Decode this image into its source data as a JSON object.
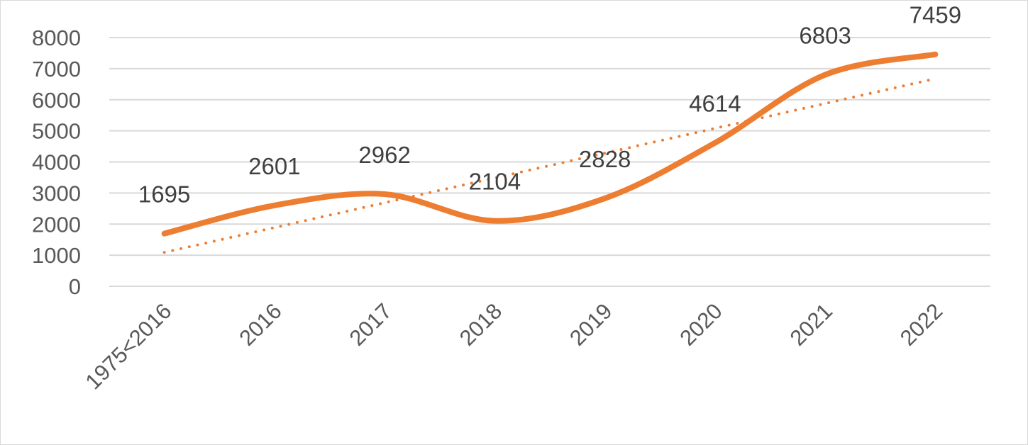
{
  "chart_data": {
    "type": "line",
    "title": "",
    "xlabel": "",
    "ylabel": "",
    "categories": [
      "1975<2016",
      "2016",
      "2017",
      "2018",
      "2019",
      "2020",
      "2021",
      "2022"
    ],
    "series": [
      {
        "values": [
          1695,
          2601,
          2962,
          2104,
          2828,
          4614,
          6803,
          7459
        ],
        "color": "#ed7d31",
        "style": "smooth-solid"
      }
    ],
    "trendline": {
      "type": "linear",
      "color": "#ed7d31",
      "style": "dotted"
    },
    "ylim": [
      0,
      8000
    ],
    "yticks": [
      0,
      1000,
      2000,
      3000,
      4000,
      5000,
      6000,
      7000,
      8000
    ],
    "grid": true,
    "legend": "none",
    "data_labels": [
      "1695",
      "2601",
      "2962",
      "2104",
      "2828",
      "4614",
      "6803",
      "7459"
    ]
  }
}
